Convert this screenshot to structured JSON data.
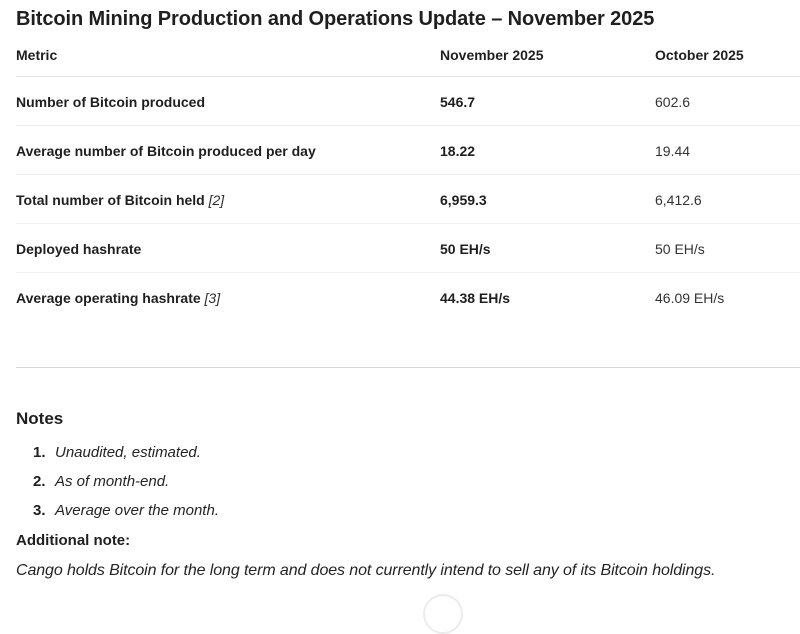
{
  "page": {
    "title": "Bitcoin Mining Production and Operations Update – November 2025"
  },
  "table": {
    "columns": [
      "Metric",
      "November 2025",
      "October 2025"
    ],
    "rows": [
      {
        "metric": "Number of Bitcoin produced",
        "ref": "",
        "nov": "546.7",
        "oct": "602.6"
      },
      {
        "metric": "Average number of Bitcoin produced per day",
        "ref": "",
        "nov": "18.22",
        "oct": "19.44"
      },
      {
        "metric": "Total number of Bitcoin held",
        "ref": "[2]",
        "nov": "6,959.3",
        "oct": "6,412.6"
      },
      {
        "metric": "Deployed hashrate",
        "ref": "",
        "nov": "50 EH/s",
        "oct": "50 EH/s"
      },
      {
        "metric": "Average operating hashrate",
        "ref": "[3]",
        "nov": "44.38 EH/s",
        "oct": "46.09 EH/s"
      }
    ]
  },
  "notes": {
    "heading": "Notes",
    "items": [
      {
        "num": "1.",
        "text": "Unaudited, estimated."
      },
      {
        "num": "2.",
        "text": "As of month-end."
      },
      {
        "num": "3.",
        "text": "Average over the month."
      }
    ]
  },
  "additional": {
    "heading": "Additional note:",
    "text": "Cango holds Bitcoin for the long term and does not currently intend to sell any of its Bitcoin holdings."
  },
  "colors": {
    "text": "#242424",
    "row_border": "#f0f0f0",
    "header_border": "#e4e4e4",
    "divider": "#d8d8d8"
  }
}
